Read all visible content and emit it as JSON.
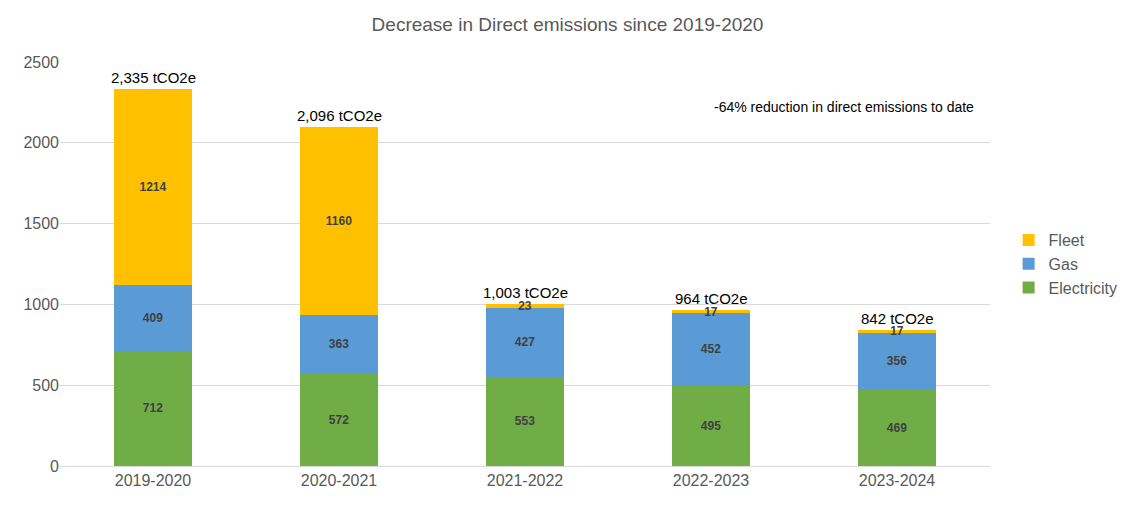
{
  "chart_data": {
    "type": "bar",
    "title": "Decrease in Direct emissions since 2019-2020",
    "categories": [
      "2019-2020",
      "2020-2021",
      "2021-2022",
      "2022-2023",
      "2023-2024"
    ],
    "series": [
      {
        "name": "Electricity",
        "color": "#70ad47",
        "values": [
          712,
          572,
          553,
          495,
          469
        ]
      },
      {
        "name": "Gas",
        "color": "#5b9bd5",
        "values": [
          409,
          363,
          427,
          452,
          356
        ]
      },
      {
        "name": "Fleet",
        "color": "#ffc000",
        "values": [
          1214,
          1160,
          23,
          17,
          17
        ]
      }
    ],
    "totals": [
      2335,
      2096,
      1003,
      964,
      842
    ],
    "total_labels": [
      "2,335 tCO2e",
      "2,096 tCO2e",
      "1,003 tCO2e",
      "964 tCO2e",
      "842 tCO2e"
    ],
    "annotations": [
      "-64% reduction in direct emissions to date"
    ],
    "ylim": [
      0,
      2500
    ],
    "yticks": [
      0,
      500,
      1000,
      1500,
      2000,
      2500
    ],
    "grid": true,
    "stacked": true,
    "data_labels": true,
    "legend": "right"
  }
}
